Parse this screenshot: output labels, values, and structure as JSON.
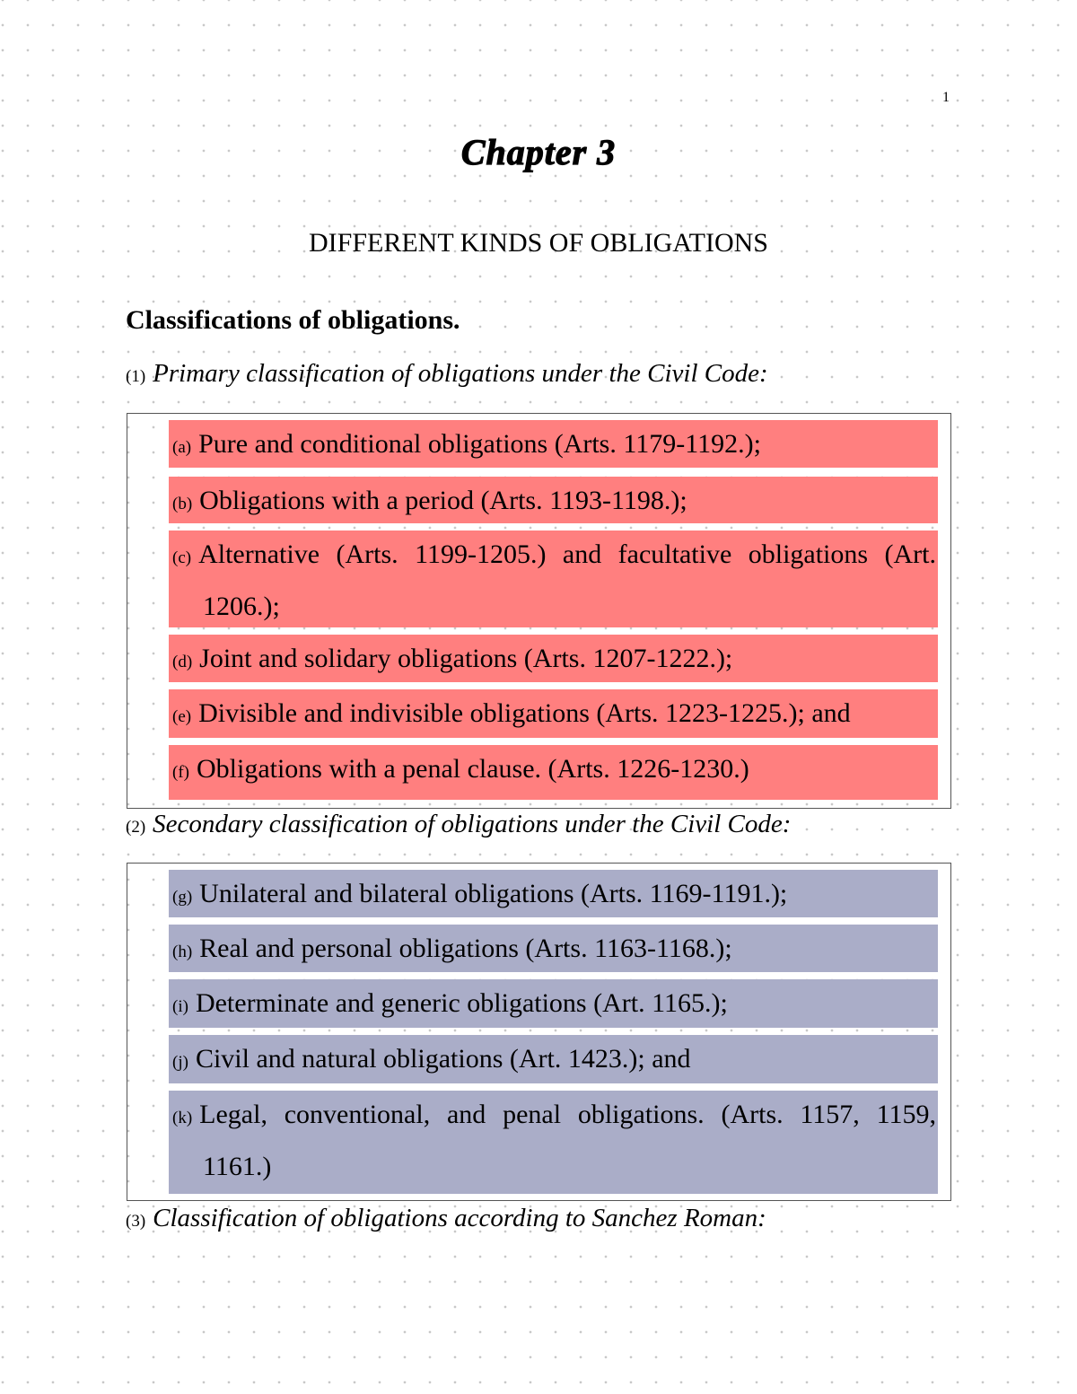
{
  "page_number": "1",
  "chapter_title": "Chapter 3",
  "heading": "DIFFERENT KINDS OF OBLIGATIONS",
  "subheading": "Classifications of obligations.",
  "colors": {
    "primary_highlight": "#ff7f7f",
    "secondary_highlight": "#aaadc8"
  },
  "sections": [
    {
      "num": "(1)",
      "title": "Primary classification of obligations under the Civil Code:",
      "items": [
        {
          "label": "(a)",
          "text": "Pure and conditional obligations (Arts. 1179-1192.);"
        },
        {
          "label": "(b)",
          "text": "Obligations with a period (Arts. 1193-1198.);"
        },
        {
          "label": "(c)",
          "text": "Alternative (Arts. 1199-1205.) and facultative obligations (Art. 1206.);"
        },
        {
          "label": "(d)",
          "text": "Joint and solidary obligations (Arts. 1207-1222.);"
        },
        {
          "label": "(e)",
          "text": "Divisible and indivisible obligations (Arts. 1223-1225.); and"
        },
        {
          "label": "(f)",
          "text": "Obligations with a penal clause. (Arts. 1226-1230.)"
        }
      ]
    },
    {
      "num": "(2)",
      "title": "Secondary classification of obligations under the Civil Code:",
      "items": [
        {
          "label": "(g)",
          "text": "Unilateral and bilateral obligations (Arts. 1169-1191.);"
        },
        {
          "label": "(h)",
          "text": "Real and personal obligations (Arts. 1163-1168.);"
        },
        {
          "label": "(i)",
          "text": "Determinate and generic obligations (Art. 1165.);"
        },
        {
          "label": "(j)",
          "text": "Civil and natural obligations (Art. 1423.); and"
        },
        {
          "label": "(k)",
          "text": "Legal, conventional, and penal obligations. (Arts. 1157, 1159, 1161.)"
        }
      ]
    },
    {
      "num": "(3)",
      "title": "Classification of obligations according to Sanchez Roman:"
    }
  ]
}
